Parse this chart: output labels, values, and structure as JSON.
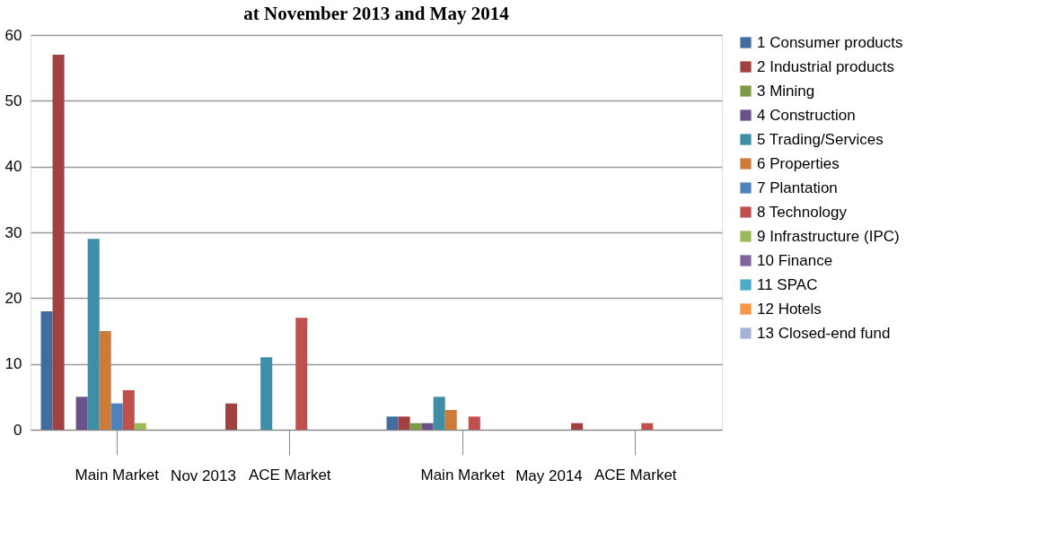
{
  "chart_data": {
    "type": "bar",
    "title": "at November 2013 and May 2014",
    "categories": [
      "Main Market",
      "ACE Market",
      "Main Market",
      "ACE Market"
    ],
    "annotations": [
      "Nov 2013",
      "May 2014"
    ],
    "ylim": [
      0,
      60
    ],
    "yticks": [
      0,
      10,
      20,
      30,
      40,
      50,
      60
    ],
    "grid": "y",
    "legend": "right",
    "series": [
      {
        "name": "1 Consumer products",
        "color": "#426b9f",
        "values": [
          18,
          0,
          2,
          0
        ]
      },
      {
        "name": "2 Industrial products",
        "color": "#a0403f",
        "values": [
          57,
          4,
          2,
          1
        ]
      },
      {
        "name": "3 Mining",
        "color": "#7e9a47",
        "values": [
          0,
          0,
          1,
          0
        ]
      },
      {
        "name": "4 Construction",
        "color": "#6a5189",
        "values": [
          5,
          0,
          1,
          0
        ]
      },
      {
        "name": "5 Trading/Services",
        "color": "#3e8ea6",
        "values": [
          29,
          11,
          5,
          0
        ]
      },
      {
        "name": "6 Properties",
        "color": "#cd7b38",
        "values": [
          15,
          0,
          3,
          0
        ]
      },
      {
        "name": "7 Plantation",
        "color": "#4f81bd",
        "values": [
          4,
          0,
          0,
          0
        ]
      },
      {
        "name": "8 Technology",
        "color": "#c0504d",
        "values": [
          6,
          17,
          2,
          1
        ]
      },
      {
        "name": "9 Infrastructure (IPC)",
        "color": "#9bbb59",
        "values": [
          1,
          0,
          0,
          0
        ]
      },
      {
        "name": "10 Finance",
        "color": "#8064a2",
        "values": [
          0,
          0,
          0,
          0
        ]
      },
      {
        "name": "11 SPAC",
        "color": "#4bacc6",
        "values": [
          0,
          0,
          0,
          0
        ]
      },
      {
        "name": "12 Hotels",
        "color": "#f79646",
        "values": [
          0,
          0,
          0,
          0
        ]
      },
      {
        "name": "13 Closed-end fund",
        "color": "#a5b4d6",
        "values": [
          0,
          0,
          0,
          0
        ]
      }
    ]
  }
}
